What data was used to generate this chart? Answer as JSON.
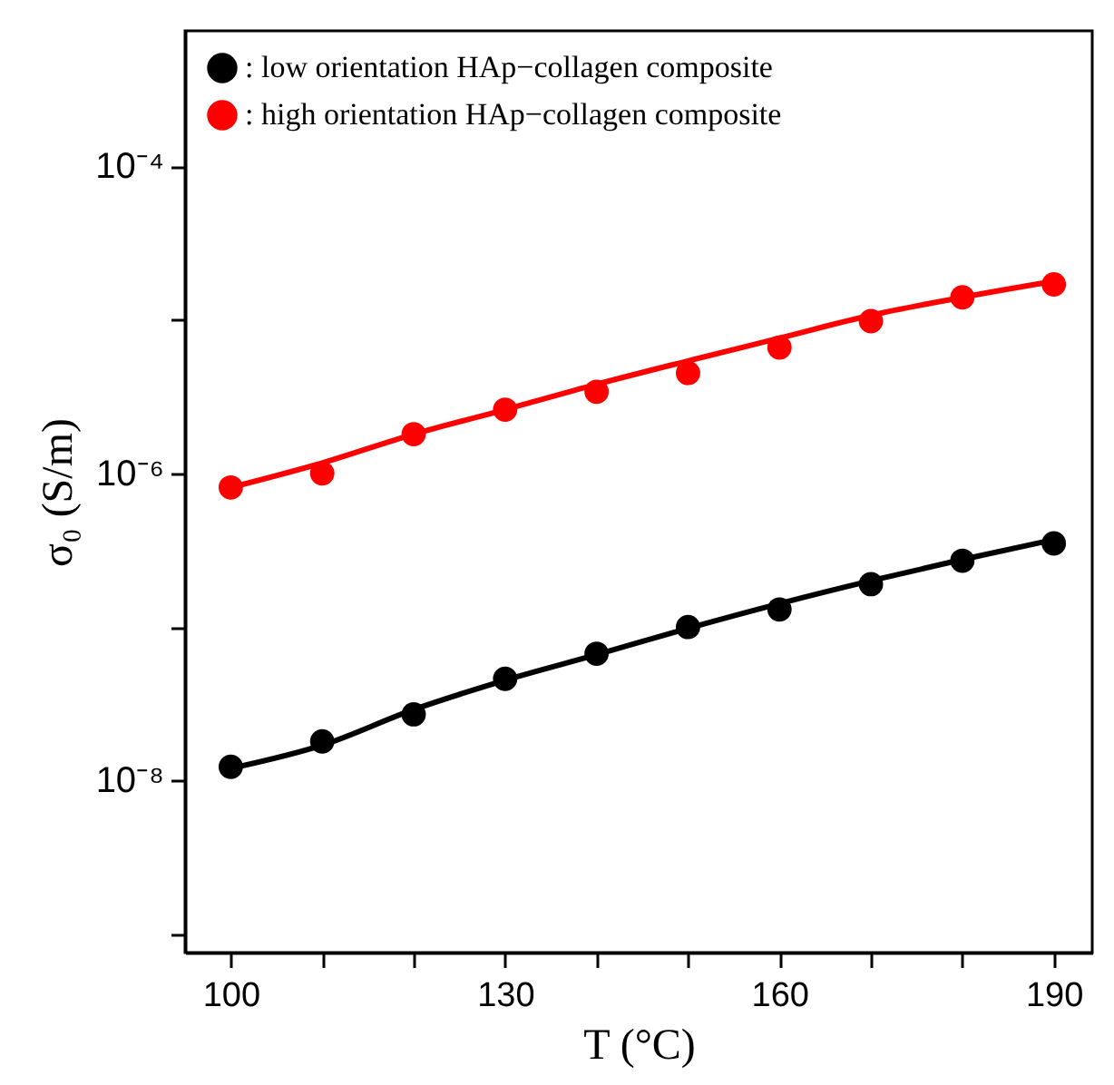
{
  "chart_data": {
    "type": "scatter",
    "xlabel": "T (°C)",
    "ylabel": "σ₀ (S/m)",
    "x": [
      100,
      110,
      120,
      130,
      140,
      150,
      160,
      170,
      180,
      190
    ],
    "series": [
      {
        "name": ": low orientation HAp−collagen composite",
        "color": "#000000",
        "values": [
          1.23e-08,
          1.8e-08,
          2.7e-08,
          4.6e-08,
          6.7e-08,
          1e-07,
          1.3e-07,
          1.9e-07,
          2.7e-07,
          3.5e-07
        ]
      },
      {
        "name": ": high orientation HAp−collagen composite",
        "color": "#ff0000",
        "values": [
          8.1e-07,
          1e-06,
          1.8e-06,
          2.6e-06,
          3.4e-06,
          4.5e-06,
          6.6e-06,
          9.8e-06,
          1.4e-05,
          1.7e-05
        ]
      },
      {
        "type": "line",
        "marker": "none",
        "color": "#000000",
        "values": [
          1.2e-08,
          1.7e-08,
          2.9e-08,
          4.5e-08,
          6.6e-08,
          9.8e-08,
          1.42e-07,
          2e-07,
          2.75e-07,
          3.7e-07
        ]
      },
      {
        "type": "line",
        "marker": "none",
        "color": "#ff0000",
        "values": [
          8.1e-07,
          1.17e-06,
          1.8e-06,
          2.6e-06,
          3.8e-06,
          5.4e-06,
          7.6e-06,
          1.07e-05,
          1.4e-05,
          1.78e-05
        ]
      }
    ],
    "log": "y",
    "xlim": [
      95,
      194.2
    ],
    "ylim": [
      7.6e-10,
      0.00076
    ],
    "xticks": [
      100,
      {
        "value": 110,
        "label": null
      },
      {
        "value": 120,
        "label": null
      },
      130,
      {
        "value": 140,
        "label": null
      },
      {
        "value": 150,
        "label": null
      },
      160,
      {
        "value": 170,
        "label": null
      },
      {
        "value": 180,
        "label": null
      },
      190
    ],
    "yticks": [
      {
        "value": 1e-09,
        "label": null
      },
      {
        "value": 1e-08,
        "label": "10⁻⁸"
      },
      {
        "value": 1e-07,
        "label": null
      },
      {
        "value": 1e-06,
        "label": "10⁻⁶"
      },
      {
        "value": 1e-05,
        "label": null
      },
      {
        "value": 0.0001,
        "label": "10⁻⁴"
      }
    ],
    "grid": false,
    "legend": "top left",
    "marker": "circle",
    "line_style": "solid"
  }
}
